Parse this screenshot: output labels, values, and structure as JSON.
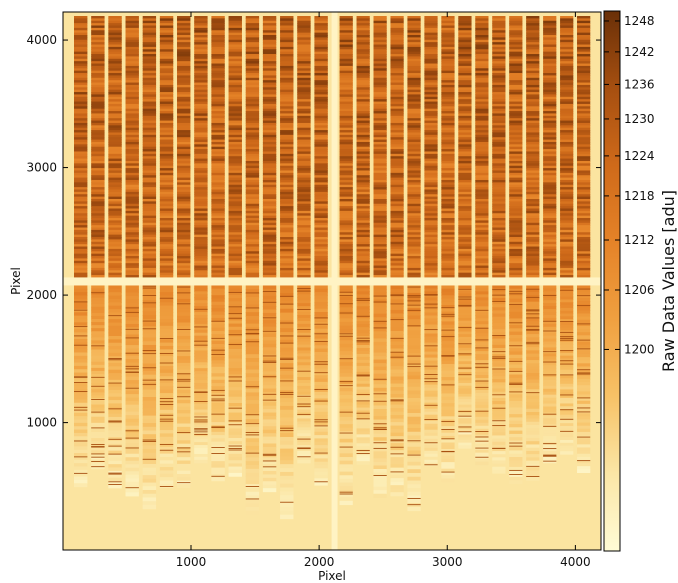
{
  "chart_data": {
    "type": "heatmap",
    "title": "",
    "xlabel": "Pixel",
    "ylabel": "Pixel",
    "xlim": [
      1,
      4200
    ],
    "ylim": [
      1,
      4220
    ],
    "x_ticks": [
      1000,
      2000,
      3000,
      4000
    ],
    "y_ticks": [
      1000,
      2000,
      3000,
      4000
    ],
    "x_tick_labels": [
      "1000",
      "2000",
      "3000",
      "4000"
    ],
    "y_tick_labels": [
      "1000",
      "2000",
      "3000",
      "4000"
    ],
    "gap_column_x": 2105,
    "gap_row_y": 2115,
    "num_spectral_traces_per_half": 15,
    "colorbar": {
      "label": "Raw Data Values [adu]",
      "scale": "nonlinear",
      "min": 1190,
      "max": 1250,
      "ticks": [
        1200,
        1206,
        1212,
        1218,
        1224,
        1230,
        1236,
        1242,
        1248
      ],
      "tick_labels": [
        "1200",
        "1206",
        "1212",
        "1218",
        "1224",
        "1230",
        "1236",
        "1242",
        "1248"
      ]
    },
    "colormap": [
      "#fffcd6",
      "#fbe6a6",
      "#f7c267",
      "#f0a040",
      "#e58328",
      "#cf6a1a",
      "#a64f10",
      "#6a3008"
    ]
  }
}
